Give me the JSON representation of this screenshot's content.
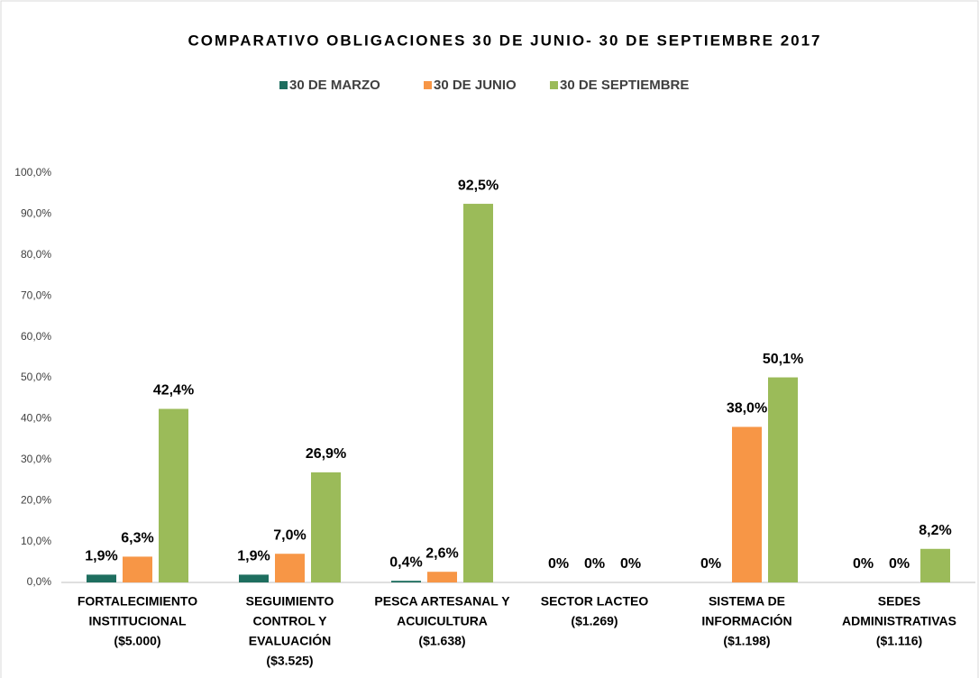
{
  "chart_data": {
    "type": "bar",
    "title": "COMPARATIVO OBLIGACIONES 30 DE JUNIO- 30 DE SEPTIEMBRE 2017",
    "categories": [
      [
        "FORTALECIMIENTO",
        "INSTITUCIONAL",
        "($5.000)"
      ],
      [
        "SEGUIMIENTO",
        "CONTROL Y",
        "EVALUACIÓN",
        "($3.525)"
      ],
      [
        "PESCA ARTESANAL Y",
        "ACUICULTURA",
        "($1.638)"
      ],
      [
        "SECTOR LACTEO",
        "($1.269)"
      ],
      [
        "SISTEMA DE",
        "INFORMACIÓN",
        "($1.198)"
      ],
      [
        "SEDES",
        "ADMINISTRATIVAS",
        "($1.116)"
      ]
    ],
    "series": [
      {
        "name": "30 DE MARZO",
        "color": "#1e6e5f",
        "values": [
          1.9,
          1.9,
          0.4,
          0,
          0,
          0
        ],
        "value_labels": [
          "1,9%",
          "1,9%",
          "0,4%",
          "0%",
          "0%",
          "0%"
        ]
      },
      {
        "name": "30 DE JUNIO",
        "color": "#f79646",
        "values": [
          6.3,
          7.0,
          2.6,
          0,
          38.0,
          0
        ],
        "value_labels": [
          "6,3%",
          "7,0%",
          "2,6%",
          "0%",
          "38,0%",
          "0%"
        ]
      },
      {
        "name": "30 DE SEPTIEMBRE",
        "color": "#9bbb59",
        "values": [
          42.4,
          26.9,
          92.5,
          0,
          50.1,
          8.2
        ],
        "value_labels": [
          "42,4%",
          "26,9%",
          "92,5%",
          "0%",
          "50,1%",
          "8,2%"
        ]
      }
    ],
    "ylim": [
      0,
      100
    ],
    "yticks": [
      {
        "value": 0,
        "label": "0,0%"
      },
      {
        "value": 10,
        "label": "10,0%"
      },
      {
        "value": 20,
        "label": "20,0%"
      },
      {
        "value": 30,
        "label": "30,0%"
      },
      {
        "value": 40,
        "label": "40,0%"
      },
      {
        "value": 50,
        "label": "50,0%"
      },
      {
        "value": 60,
        "label": "60,0%"
      },
      {
        "value": 70,
        "label": "70,0%"
      },
      {
        "value": 80,
        "label": "80,0%"
      },
      {
        "value": 90,
        "label": "90,0%"
      },
      {
        "value": 100,
        "label": "100,0%"
      }
    ],
    "grid": false,
    "legend": "top"
  }
}
